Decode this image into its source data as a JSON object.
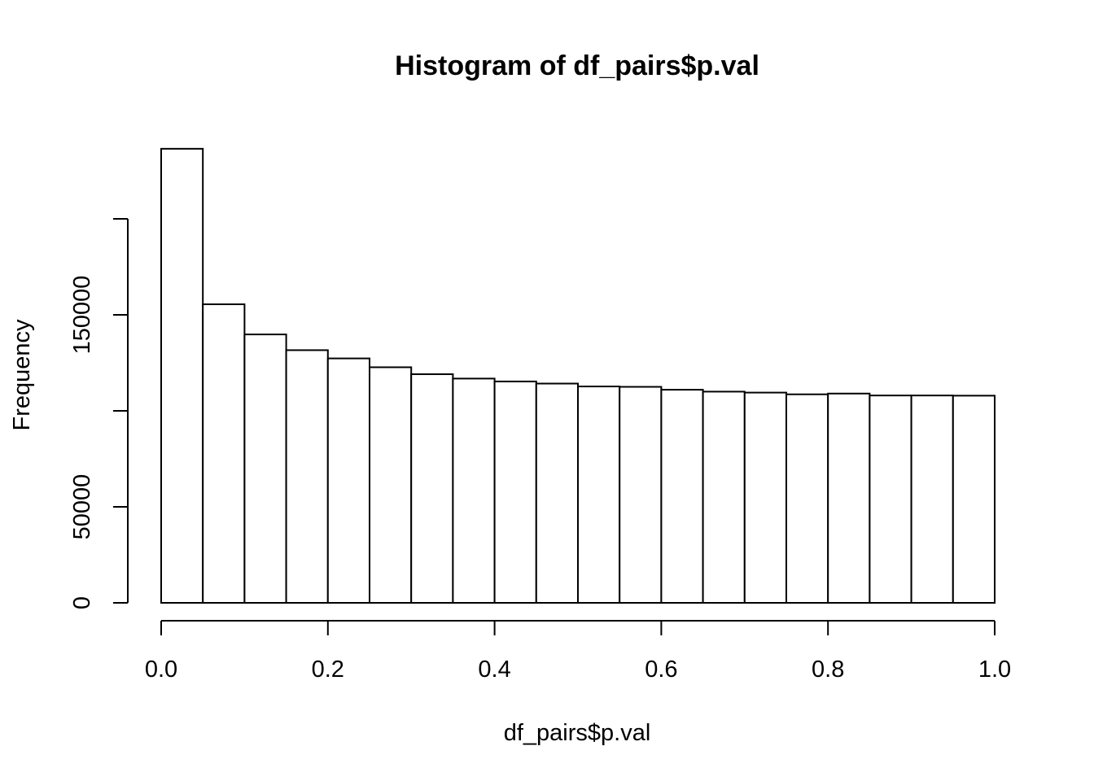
{
  "chart_data": {
    "type": "bar",
    "title": "Histogram of df_pairs$p.val",
    "xlabel": "df_pairs$p.val",
    "ylabel": "Frequency",
    "xlim": [
      0,
      1
    ],
    "ylim": [
      0,
      250000
    ],
    "x_ticks": [
      0.0,
      0.2,
      0.4,
      0.6,
      0.8,
      1.0
    ],
    "x_tick_labels": [
      "0.0",
      "0.2",
      "0.4",
      "0.6",
      "0.8",
      "1.0"
    ],
    "y_ticks": [
      0,
      50000,
      100000,
      150000,
      200000
    ],
    "y_tick_labels": [
      "0",
      "50000",
      "",
      "150000",
      ""
    ],
    "bin_edges": [
      0.0,
      0.05,
      0.1,
      0.15,
      0.2,
      0.25,
      0.3,
      0.35,
      0.4,
      0.45,
      0.5,
      0.55,
      0.6,
      0.65,
      0.7,
      0.75,
      0.8,
      0.85,
      0.9,
      0.95,
      1.0
    ],
    "values": [
      236500,
      155500,
      139800,
      131600,
      127300,
      122700,
      119100,
      116800,
      115300,
      114200,
      112700,
      112500,
      111000,
      110000,
      109500,
      108600,
      109000,
      108000,
      108000,
      107900
    ],
    "grid": false,
    "legend": "none"
  }
}
